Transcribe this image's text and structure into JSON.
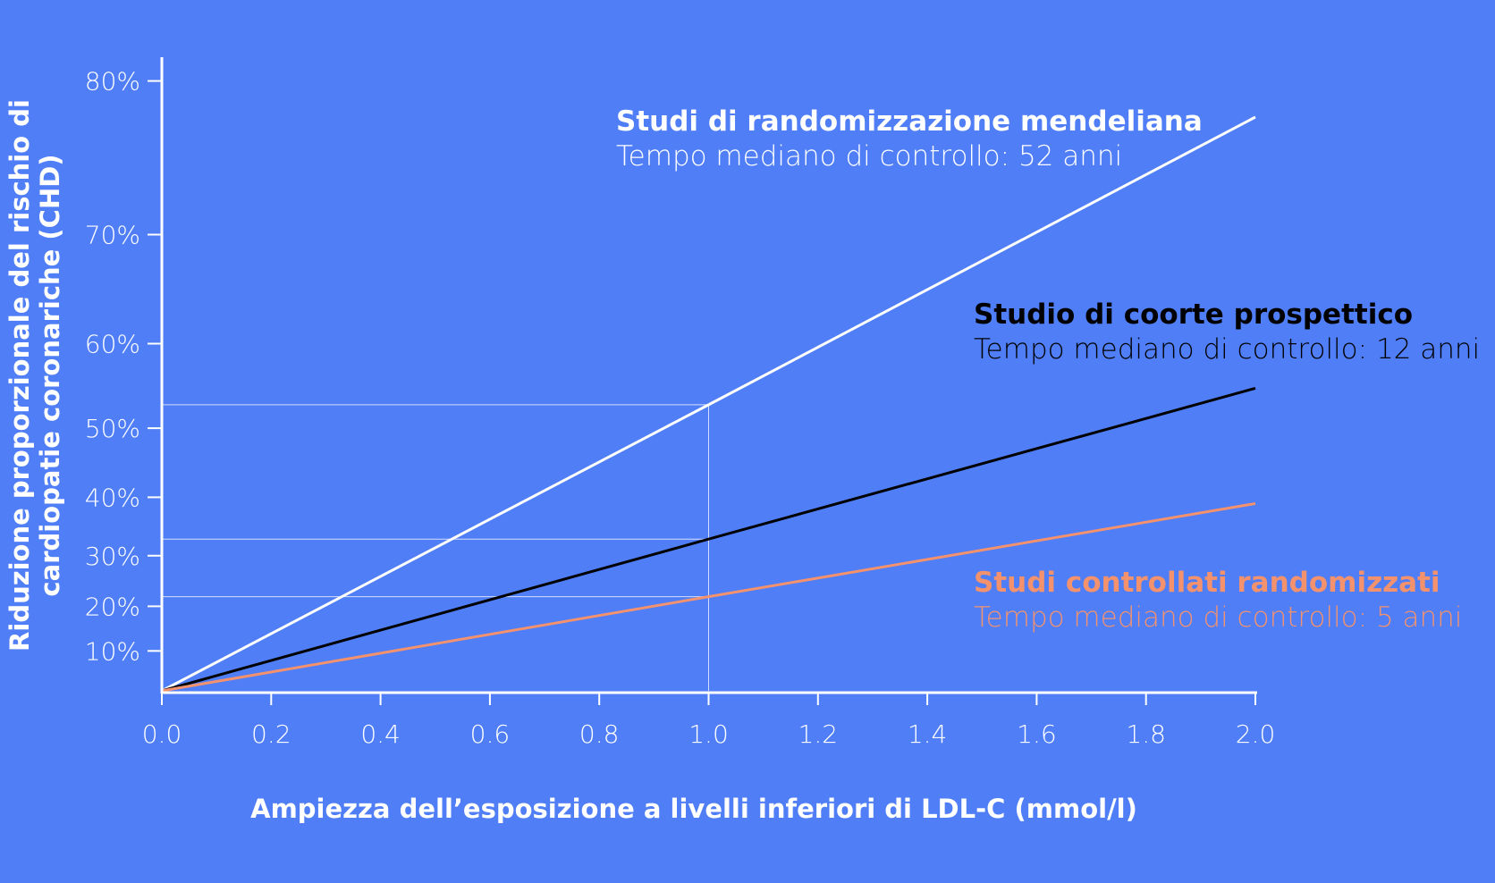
{
  "chart_data": {
    "type": "line",
    "xlabel": "Ampiezza dell’esposizione a livelli inferiori di LDL-C (mmol/l)",
    "ylabel_lines": [
      "Riduzione proporzionale del rischio di",
      "cardiopatie coronariche (CHD)"
    ],
    "x_ticks": [
      "0.0",
      "0.2",
      "0.4",
      "0.6",
      "0.8",
      "1.0",
      "1.2",
      "1.4",
      "1.6",
      "1.8",
      "2.0"
    ],
    "y_ticks": [
      {
        "value": 10,
        "label": "10%"
      },
      {
        "value": 20,
        "label": "20%"
      },
      {
        "value": 30,
        "label": "30%"
      },
      {
        "value": 40,
        "label": "40%"
      },
      {
        "value": 50,
        "label": "50%"
      },
      {
        "value": 60,
        "label": "60%"
      },
      {
        "value": 70,
        "label": "70%"
      },
      {
        "value": 80,
        "label": "80%"
      }
    ],
    "y_scale": "log relative risk (proportional reduction)",
    "xlim": [
      0,
      2.0
    ],
    "grid": false,
    "background": "#4f7ef6",
    "reference_x": 1.0,
    "series": [
      {
        "name": "Studi di randomizzazione mendeliana",
        "subtitle": "Tempo mediano di controllo: 52 anni",
        "color": "#ffffff",
        "x": [
          0,
          1.0,
          2.0
        ],
        "y": [
          0,
          53,
          78
        ]
      },
      {
        "name": "Studio di coorte prospettico",
        "subtitle": "Tempo mediano di controllo: 12 anni",
        "color": "#000000",
        "x": [
          0,
          1.0,
          2.0
        ],
        "y": [
          0,
          33,
          55
        ]
      },
      {
        "name": "Studi controllati randomizzati",
        "subtitle": "Tempo mediano di controllo: 5 anni",
        "color": "#f4926e",
        "x": [
          0,
          1.0,
          2.0
        ],
        "y": [
          0,
          22,
          39
        ]
      }
    ]
  }
}
